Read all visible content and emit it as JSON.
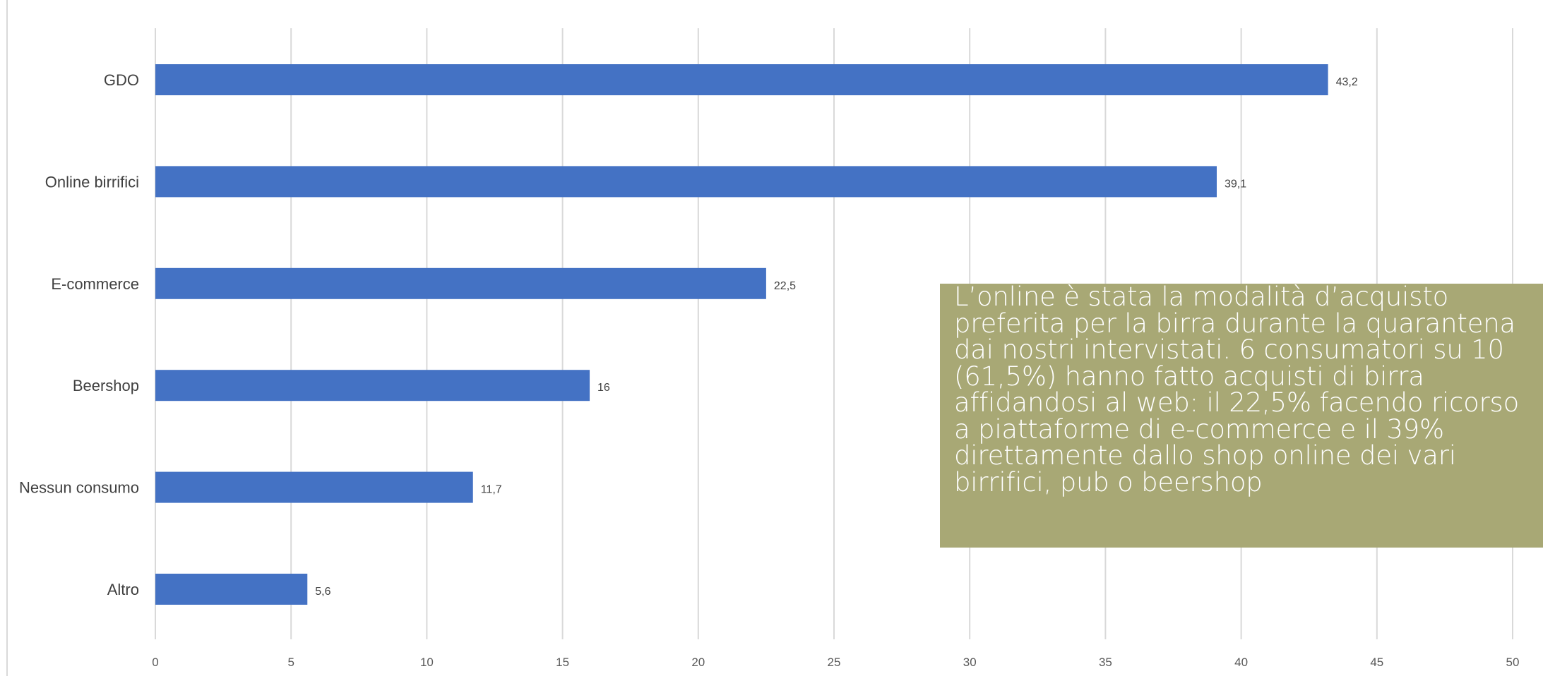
{
  "chart_data": {
    "type": "bar",
    "orientation": "horizontal",
    "title": "",
    "categories": [
      "GDO",
      "Online birrifici",
      "E-commerce",
      "Beershop",
      "Nessun consumo",
      "Altro"
    ],
    "values": [
      43.2,
      39.1,
      22.5,
      16,
      11.7,
      5.6
    ],
    "value_labels": [
      "43,2",
      "39,1",
      "22,5",
      "16",
      "11,7",
      "5,6"
    ],
    "xlim": [
      0,
      50
    ],
    "x_ticks": [
      0,
      5,
      10,
      15,
      20,
      25,
      30,
      35,
      40,
      45,
      50
    ],
    "grid": "vertical",
    "xlabel": "",
    "ylabel": "",
    "bar_color": "#4472c4"
  },
  "callout": {
    "text": "L’online è stata la modalità d’acquisto preferita per la birra durante la quarantena dai nostri intervistati. 6 consumatori su 10 (61,5%) hanno fatto acquisti di birra affidandosi al web: il 22,5% facendo ricorso a piattaforme di e-commerce e il 39% direttamente dallo shop online dei vari birrifici, pub o beershop",
    "background": "#a8a875",
    "text_color": "#ffffff"
  }
}
